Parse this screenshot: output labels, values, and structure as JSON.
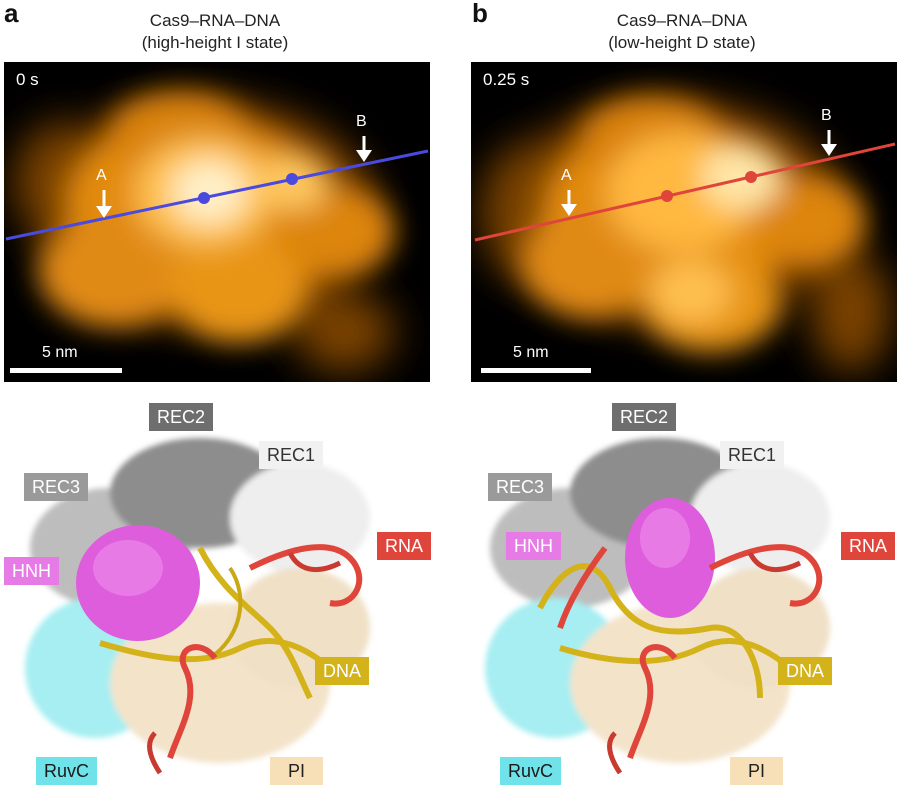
{
  "panels": [
    {
      "letter": "a",
      "title_line1": "Cas9–RNA–DNA",
      "title_line2": "(high-height I state)",
      "time": "0 s",
      "scale": "5 nm",
      "point_a": "A",
      "point_b": "B",
      "line_color": "#4a4adf"
    },
    {
      "letter": "b",
      "title_line1": "Cas9–RNA–DNA",
      "title_line2": "(low-height D state)",
      "time": "0.25 s",
      "scale": "5 nm",
      "point_a": "A",
      "point_b": "B",
      "line_color": "#e0453b"
    }
  ],
  "labels": {
    "rec2": "REC2",
    "rec1": "REC1",
    "rec3": "REC3",
    "hnh": "HNH",
    "rna": "RNA",
    "dna": "DNA",
    "ruvc": "RuvC",
    "pi": "PI"
  },
  "colors": {
    "rec2": "#6e6e6e",
    "rec1": "#f1f1f1",
    "rec3": "#9a9a9a",
    "hnh": "#e77be6",
    "rna": "#e0453b",
    "dna": "#d4b21a",
    "ruvc": "#70e2ea",
    "pi": "#f7dfb8"
  }
}
